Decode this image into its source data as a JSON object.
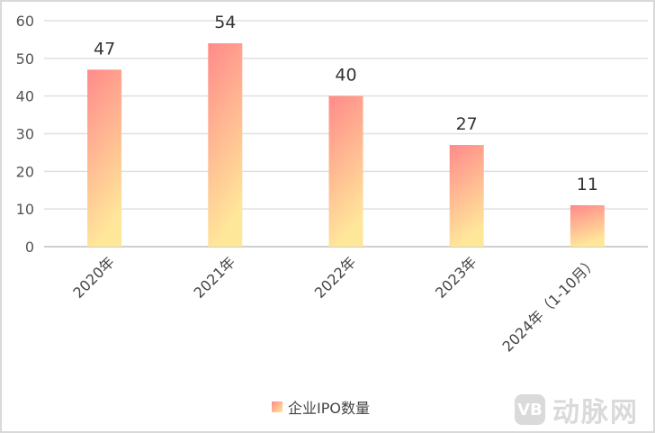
{
  "chart_data": {
    "type": "bar",
    "categories": [
      "2020年",
      "2021年",
      "2022年",
      "2023年",
      "2024年（1-10月）"
    ],
    "series": [
      {
        "name": "企业IPO数量",
        "values": [
          47,
          54,
          40,
          27,
          11
        ]
      }
    ],
    "ylim": [
      0,
      60
    ],
    "yticks": [
      0,
      10,
      20,
      30,
      40,
      50,
      60
    ],
    "grid": true,
    "data_labels": true,
    "legend_position": "bottom",
    "colors": {
      "gradient_top": "#ff8a8a",
      "gradient_bottom": "#ffe79a",
      "grid": "#e0e0e0"
    }
  },
  "watermark": {
    "logo_text": "VB",
    "text": "动脉网"
  }
}
